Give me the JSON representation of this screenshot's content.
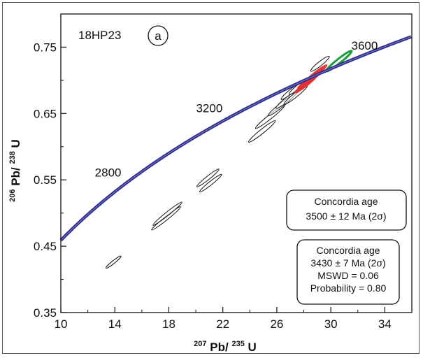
{
  "chart_data": {
    "type": "scatter",
    "title": "",
    "sample_label": "18HP23",
    "panel_label": "a",
    "xlabel": "207Pb/235U",
    "xlabel_parts": {
      "mass1": "207",
      "el1": "Pb/",
      "mass2": "235",
      "el2": "U"
    },
    "ylabel": "206Pb/238U",
    "ylabel_parts": {
      "mass1": "206",
      "el1": "Pb/",
      "mass2": "238",
      "el2": "U"
    },
    "xlim": [
      10,
      36
    ],
    "ylim": [
      0.35,
      0.8
    ],
    "xticks": [
      10,
      14,
      18,
      22,
      26,
      30,
      34
    ],
    "yticks": [
      0.35,
      0.45,
      0.55,
      0.65,
      0.75
    ],
    "xtick_labels": [
      "10",
      "14",
      "18",
      "22",
      "26",
      "30",
      "34"
    ],
    "ytick_labels": [
      "0.35",
      "0.45",
      "0.55",
      "0.65",
      "0.75"
    ],
    "grid": false,
    "concordia": {
      "color": "#2e2e8c",
      "age_labels": [
        {
          "text": "2800",
          "x": 13.5,
          "y": 0.555
        },
        {
          "text": "3200",
          "x": 21.0,
          "y": 0.652
        },
        {
          "text": "3600",
          "x": 32.5,
          "y": 0.746
        }
      ]
    },
    "series": [
      {
        "color": "#111111",
        "ellipses": [
          {
            "x": 13.9,
            "y": 0.426,
            "rx": 1.3,
            "ry": 0.4
          },
          {
            "x": 17.8,
            "y": 0.492,
            "rx": 2.5,
            "ry": 0.5
          },
          {
            "x": 17.9,
            "y": 0.499,
            "rx": 2.5,
            "ry": 0.5
          },
          {
            "x": 20.9,
            "y": 0.553,
            "rx": 1.9,
            "ry": 0.5
          },
          {
            "x": 21.1,
            "y": 0.545,
            "rx": 1.9,
            "ry": 0.5
          },
          {
            "x": 24.9,
            "y": 0.623,
            "rx": 2.3,
            "ry": 0.6
          },
          {
            "x": 25.5,
            "y": 0.645,
            "rx": 2.5,
            "ry": 0.6
          },
          {
            "x": 26.3,
            "y": 0.662,
            "rx": 2.2,
            "ry": 0.6
          },
          {
            "x": 26.8,
            "y": 0.672,
            "rx": 2.0,
            "ry": 0.6
          },
          {
            "x": 27.1,
            "y": 0.684,
            "rx": 1.8,
            "ry": 0.6
          },
          {
            "x": 27.4,
            "y": 0.678,
            "rx": 2.0,
            "ry": 0.6
          },
          {
            "x": 27.6,
            "y": 0.69,
            "rx": 1.6,
            "ry": 0.6
          },
          {
            "x": 29.2,
            "y": 0.725,
            "rx": 1.6,
            "ry": 0.6
          }
        ]
      },
      {
        "color": "#e53030",
        "filled": true,
        "ellipses": [
          {
            "x": 28.2,
            "y": 0.695,
            "rx": 2.0,
            "ry": 0.6
          },
          {
            "x": 28.6,
            "y": 0.703,
            "rx": 2.0,
            "ry": 0.6
          },
          {
            "x": 28.9,
            "y": 0.71,
            "rx": 1.9,
            "ry": 0.6
          },
          {
            "x": 28.3,
            "y": 0.7,
            "rx": 1.8,
            "ry": 0.5
          }
        ]
      },
      {
        "color": "#1f9a3c",
        "ellipses": [
          {
            "x": 30.6,
            "y": 0.729,
            "rx": 2.2,
            "ry": 0.6
          }
        ]
      }
    ],
    "annotations": [
      {
        "title": "Concordia age",
        "lines": [
          "3500 ± 12 Ma (2σ)"
        ]
      },
      {
        "title": "Concordia age",
        "lines": [
          "3430 ± 7 Ma (2σ)",
          "MSWD = 0.06",
          "Probability = 0.80"
        ]
      }
    ]
  }
}
